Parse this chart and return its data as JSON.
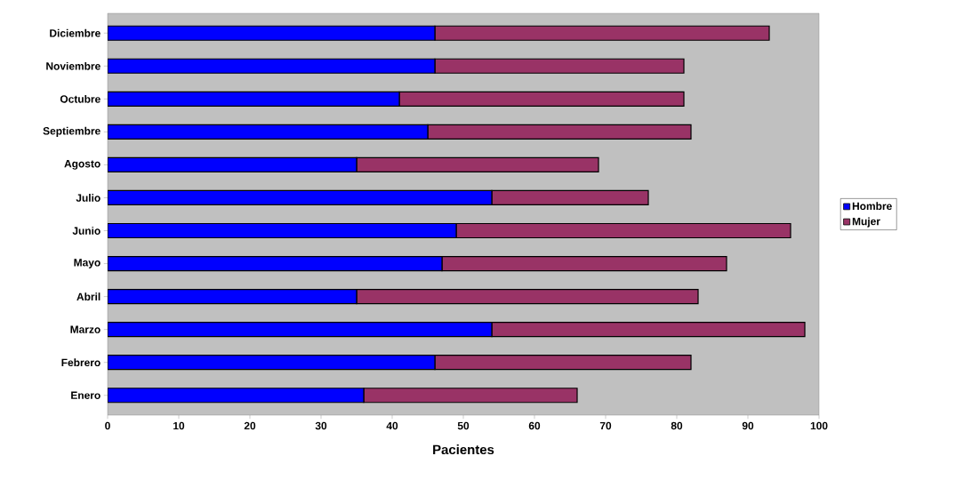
{
  "chart_data": {
    "type": "bar",
    "orientation": "horizontal",
    "stacked": true,
    "xlabel": "Pacientes",
    "categories": [
      "Diciembre",
      "Noviembre",
      "Octubre",
      "Septiembre",
      "Agosto",
      "Julio",
      "Junio",
      "Mayo",
      "Abril",
      "Marzo",
      "Febrero",
      "Enero"
    ],
    "series": [
      {
        "name": "Hombre",
        "color": "#0000ff",
        "values": [
          46,
          46,
          41,
          45,
          35,
          54,
          49,
          47,
          35,
          54,
          46,
          36
        ]
      },
      {
        "name": "Mujer",
        "color": "#993366",
        "values": [
          47,
          35,
          40,
          37,
          34,
          22,
          47,
          40,
          48,
          44,
          36,
          30
        ]
      }
    ],
    "xlim": [
      0,
      100
    ],
    "xticks": [
      0,
      10,
      20,
      30,
      40,
      50,
      60,
      70,
      80,
      90,
      100
    ],
    "grid": false,
    "legend": "right"
  }
}
